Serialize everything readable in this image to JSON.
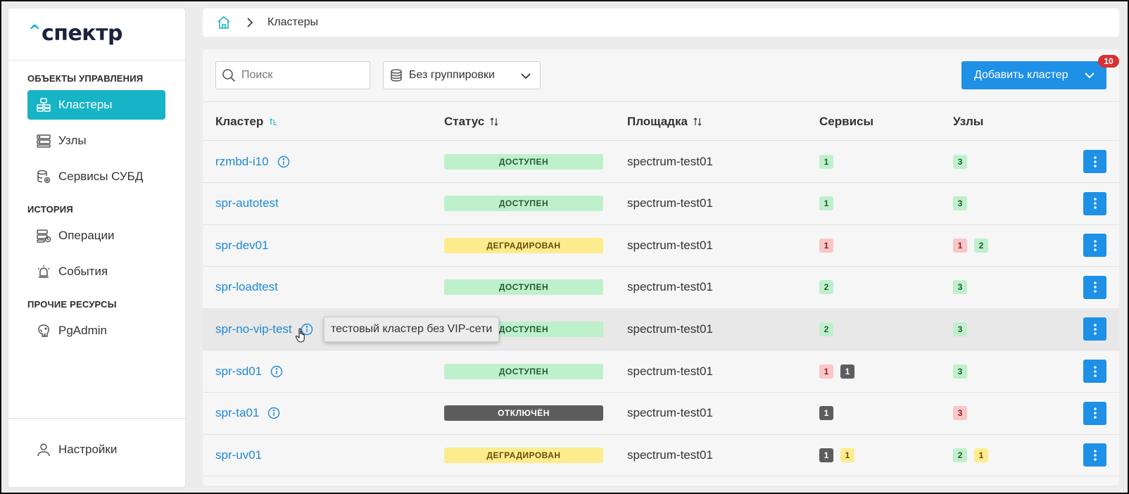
{
  "app": {
    "logo_caret": "^",
    "logo_text": "спектр"
  },
  "sidebar": {
    "sections": [
      {
        "title": "ОБЪЕКТЫ УПРАВЛЕНИЯ",
        "items": [
          {
            "label": "Кластеры",
            "icon": "clusters-icon",
            "active": true
          },
          {
            "label": "Узлы",
            "icon": "nodes-icon"
          },
          {
            "label": "Сервисы СУБД",
            "icon": "database-icon"
          }
        ]
      },
      {
        "title": "ИСТОРИЯ",
        "items": [
          {
            "label": "Операции",
            "icon": "operations-icon"
          },
          {
            "label": "События",
            "icon": "alarm-icon"
          }
        ]
      },
      {
        "title": "ПРОЧИЕ РЕСУРСЫ",
        "items": [
          {
            "label": "PgAdmin",
            "icon": "elephant-icon"
          }
        ]
      }
    ],
    "settings_label": "Настройки"
  },
  "breadcrumb": {
    "current": "Кластеры"
  },
  "toolbar": {
    "search_placeholder": "Поиск",
    "search_value": "",
    "grouping_value": "Без группировки",
    "add_label": "Добавить кластер",
    "notification_count": "10"
  },
  "table": {
    "columns": {
      "cluster": "Кластер",
      "status": "Статус",
      "site": "Площадка",
      "services": "Сервисы",
      "nodes": "Узлы"
    },
    "rows": [
      {
        "name": "rzmbd-i10",
        "info": true,
        "status": "ДОСТУПЕН",
        "status_kind": "ok",
        "site": "spectrum-test01",
        "services": [
          {
            "v": "1",
            "c": "green"
          }
        ],
        "nodes": [
          {
            "v": "3",
            "c": "green"
          }
        ]
      },
      {
        "name": "spr-autotest",
        "info": false,
        "status": "ДОСТУПЕН",
        "status_kind": "ok",
        "site": "spectrum-test01",
        "services": [
          {
            "v": "1",
            "c": "green"
          }
        ],
        "nodes": [
          {
            "v": "3",
            "c": "green"
          }
        ]
      },
      {
        "name": "spr-dev01",
        "info": false,
        "status": "ДЕГРАДИРОВАН",
        "status_kind": "deg",
        "site": "spectrum-test01",
        "services": [
          {
            "v": "1",
            "c": "red"
          }
        ],
        "nodes": [
          {
            "v": "1",
            "c": "red"
          },
          {
            "v": "2",
            "c": "green"
          }
        ]
      },
      {
        "name": "spr-loadtest",
        "info": false,
        "status": "ДОСТУПЕН",
        "status_kind": "ok",
        "site": "spectrum-test01",
        "services": [
          {
            "v": "2",
            "c": "green"
          }
        ],
        "nodes": [
          {
            "v": "3",
            "c": "green"
          }
        ]
      },
      {
        "name": "spr-no-vip-test",
        "info": true,
        "status": "ДОСТУПЕН",
        "status_kind": "ok",
        "site": "spectrum-test01",
        "services": [
          {
            "v": "2",
            "c": "green"
          }
        ],
        "nodes": [
          {
            "v": "3",
            "c": "green"
          }
        ],
        "hover": true,
        "tooltip": "тестовый кластер без VIP-сети"
      },
      {
        "name": "spr-sd01",
        "info": true,
        "status": "ДОСТУПЕН",
        "status_kind": "ok",
        "site": "spectrum-test01",
        "services": [
          {
            "v": "1",
            "c": "red"
          },
          {
            "v": "1",
            "c": "dark"
          }
        ],
        "nodes": [
          {
            "v": "3",
            "c": "green"
          }
        ]
      },
      {
        "name": "spr-ta01",
        "info": true,
        "status": "ОТКЛЮЧЁН",
        "status_kind": "off",
        "site": "spectrum-test01",
        "services": [
          {
            "v": "1",
            "c": "dark"
          }
        ],
        "nodes": [
          {
            "v": "3",
            "c": "red"
          }
        ]
      },
      {
        "name": "spr-uv01",
        "info": false,
        "status": "ДЕГРАДИРОВАН",
        "status_kind": "deg",
        "site": "spectrum-test01",
        "services": [
          {
            "v": "1",
            "c": "dark"
          },
          {
            "v": "1",
            "c": "yellow"
          }
        ],
        "nodes": [
          {
            "v": "2",
            "c": "green"
          },
          {
            "v": "1",
            "c": "yellow"
          }
        ]
      }
    ]
  },
  "colors": {
    "accent": "#17b3c7",
    "primary": "#1e90e6",
    "link": "#1e88d6"
  }
}
